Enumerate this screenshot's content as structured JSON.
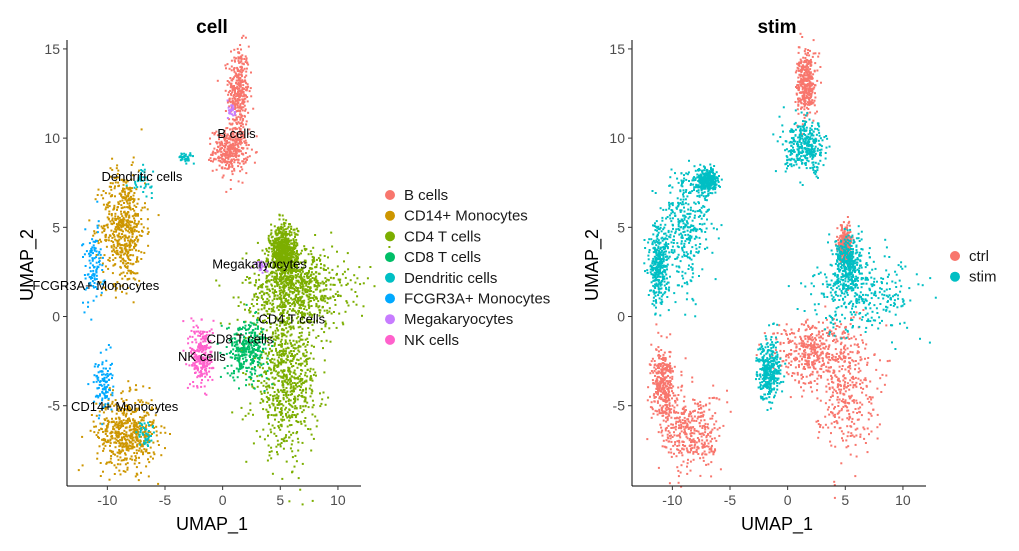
{
  "chart_data": [
    {
      "type": "scatter",
      "title": "cell",
      "xlabel": "UMAP_1",
      "ylabel": "UMAP_2",
      "xlim": [
        -13.5,
        12
      ],
      "ylim": [
        -9.5,
        15.5
      ],
      "xticks": [
        -10,
        -5,
        0,
        5,
        10
      ],
      "yticks": [
        -5,
        0,
        5,
        10,
        15
      ],
      "grid": false,
      "legend_position": "right",
      "legend": [
        {
          "label": "B cells",
          "color": "#F8766D"
        },
        {
          "label": "CD14+ Monocytes",
          "color": "#CD9600"
        },
        {
          "label": "CD4 T cells",
          "color": "#7CAE00"
        },
        {
          "label": "CD8 T cells",
          "color": "#00BE67"
        },
        {
          "label": "Dendritic cells",
          "color": "#00BFC4"
        },
        {
          "label": "FCGR3A+ Monocytes",
          "color": "#00A9FF"
        },
        {
          "label": "Megakaryocytes",
          "color": "#C77CFF"
        },
        {
          "label": "NK cells",
          "color": "#FF61CC"
        }
      ],
      "clusters": [
        {
          "group": "B cells",
          "color": "#F8766D",
          "n": 700,
          "shapes": [
            {
              "cx": 1.4,
              "cy": 12.6,
              "sx": 0.45,
              "sy": 1.3
            },
            {
              "cx": 0.7,
              "cy": 9.3,
              "sx": 0.75,
              "sy": 0.6
            }
          ]
        },
        {
          "group": "CD14+ Monocytes",
          "color": "#CD9600",
          "n": 1100,
          "shapes": [
            {
              "cx": -8.6,
              "cy": 5.0,
              "sx": 0.95,
              "sy": 1.6
            },
            {
              "cx": -8.3,
              "cy": -6.5,
              "sx": 1.3,
              "sy": 1.0
            }
          ]
        },
        {
          "group": "CD4 T cells",
          "color": "#7CAE00",
          "n": 2300,
          "shapes": [
            {
              "cx": 6.5,
              "cy": 1.5,
              "sx": 2.2,
              "sy": 1.1
            },
            {
              "cx": 5.5,
              "cy": -3.5,
              "sx": 1.4,
              "sy": 2.0
            },
            {
              "cx": 5.3,
              "cy": 3.5,
              "sx": 0.6,
              "sy": 0.8
            }
          ]
        },
        {
          "group": "CD8 T cells",
          "color": "#00BE67",
          "n": 320,
          "shapes": [
            {
              "cx": 2.2,
              "cy": -1.8,
              "sx": 0.9,
              "sy": 0.8
            }
          ]
        },
        {
          "group": "Dendritic cells",
          "color": "#00BFC4",
          "n": 120,
          "shapes": [
            {
              "cx": -7.0,
              "cy": 7.6,
              "sx": 0.45,
              "sy": 0.35
            },
            {
              "cx": -3.2,
              "cy": 8.9,
              "sx": 0.35,
              "sy": 0.12
            },
            {
              "cx": -6.7,
              "cy": -6.6,
              "sx": 0.3,
              "sy": 0.4
            }
          ]
        },
        {
          "group": "FCGR3A+ Monocytes",
          "color": "#00A9FF",
          "n": 220,
          "shapes": [
            {
              "cx": -11.2,
              "cy": 2.8,
              "sx": 0.45,
              "sy": 1.1
            },
            {
              "cx": -10.4,
              "cy": -3.8,
              "sx": 0.4,
              "sy": 0.8
            }
          ]
        },
        {
          "group": "Megakaryocytes",
          "color": "#C77CFF",
          "n": 50,
          "shapes": [
            {
              "cx": 3.4,
              "cy": 2.8,
              "sx": 0.3,
              "sy": 0.2
            },
            {
              "cx": 0.8,
              "cy": 11.5,
              "sx": 0.15,
              "sy": 0.3
            }
          ]
        },
        {
          "group": "NK cells",
          "color": "#FF61CC",
          "n": 260,
          "shapes": [
            {
              "cx": -1.8,
              "cy": -2.2,
              "sx": 0.5,
              "sy": 0.9
            }
          ]
        }
      ],
      "annotations": [
        {
          "text": "B cells",
          "x": 1.2,
          "y": 10.0
        },
        {
          "text": "Dendritic cells",
          "x": -7.0,
          "y": 7.6
        },
        {
          "text": "Megakaryocytes",
          "x": 3.2,
          "y": 2.7
        },
        {
          "text": "FCGR3A+ Monocytes",
          "x": -11.0,
          "y": 1.5
        },
        {
          "text": "CD4 T cells",
          "x": 6.0,
          "y": -0.4
        },
        {
          "text": "CD8 T cells",
          "x": 1.5,
          "y": -1.5
        },
        {
          "text": "NK cells",
          "x": -1.8,
          "y": -2.5
        },
        {
          "text": "CD14+ Monocytes",
          "x": -8.5,
          "y": -5.3
        }
      ]
    },
    {
      "type": "scatter",
      "title": "stim",
      "xlabel": "UMAP_1",
      "ylabel": "UMAP_2",
      "xlim": [
        -13.5,
        12
      ],
      "ylim": [
        -9.5,
        15.5
      ],
      "xticks": [
        -10,
        -5,
        0,
        5,
        10
      ],
      "yticks": [
        -5,
        0,
        5,
        10,
        15
      ],
      "grid": false,
      "legend_position": "right",
      "legend": [
        {
          "label": "ctrl",
          "color": "#F8766D"
        },
        {
          "label": "stim",
          "color": "#00BFC4"
        }
      ],
      "clusters": [
        {
          "group": "ctrl",
          "color": "#F8766D",
          "n": 2200,
          "shapes": [
            {
              "cx": 5.0,
              "cy": -3.8,
              "sx": 1.3,
              "sy": 1.8
            },
            {
              "cx": 2.0,
              "cy": -2.0,
              "sx": 1.6,
              "sy": 0.9
            },
            {
              "cx": -8.3,
              "cy": -6.5,
              "sx": 1.3,
              "sy": 1.1
            },
            {
              "cx": -10.8,
              "cy": -3.8,
              "sx": 0.5,
              "sy": 1.0
            },
            {
              "cx": 1.6,
              "cy": 13.0,
              "sx": 0.4,
              "sy": 0.9
            },
            {
              "cx": 5.0,
              "cy": 4.0,
              "sx": 0.25,
              "sy": 0.5
            }
          ]
        },
        {
          "group": "stim",
          "color": "#00BFC4",
          "n": 2400,
          "shapes": [
            {
              "cx": 6.5,
              "cy": 1.3,
              "sx": 2.4,
              "sy": 1.1
            },
            {
              "cx": -8.8,
              "cy": 5.0,
              "sx": 1.0,
              "sy": 1.7
            },
            {
              "cx": -11.2,
              "cy": 2.8,
              "sx": 0.45,
              "sy": 1.1
            },
            {
              "cx": 1.6,
              "cy": 9.5,
              "sx": 0.9,
              "sy": 0.7
            },
            {
              "cx": -1.6,
              "cy": -3.0,
              "sx": 0.5,
              "sy": 0.8
            },
            {
              "cx": -7.0,
              "cy": 7.6,
              "sx": 0.45,
              "sy": 0.35
            },
            {
              "cx": 5.3,
              "cy": 3.0,
              "sx": 0.6,
              "sy": 0.8
            }
          ]
        }
      ],
      "annotations": []
    }
  ]
}
